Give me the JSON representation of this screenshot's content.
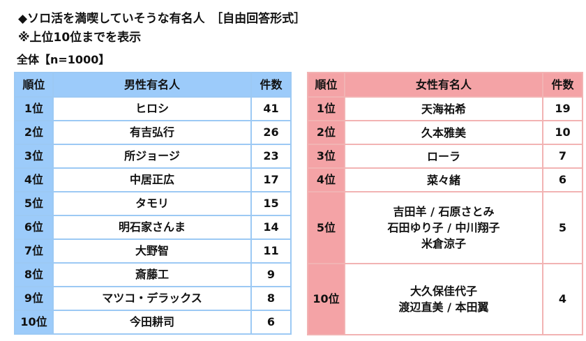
{
  "title": "◆ソロ活を満喫していそうな有名人　［自由回答形式］",
  "note": "※上位10位までを表示",
  "sample": "全体【n=1000】",
  "colors": {
    "male_header": "#9ccbfa",
    "female_header": "#f4a3a6"
  },
  "male_table": {
    "headers": [
      "順位",
      "男性有名人",
      "件数"
    ],
    "rows": [
      {
        "rank": "1位",
        "name": "ヒロシ",
        "count": "41"
      },
      {
        "rank": "2位",
        "name": "有吉弘行",
        "count": "26"
      },
      {
        "rank": "3位",
        "name": "所ジョージ",
        "count": "23"
      },
      {
        "rank": "4位",
        "name": "中居正広",
        "count": "17"
      },
      {
        "rank": "5位",
        "name": "タモリ",
        "count": "15"
      },
      {
        "rank": "6位",
        "name": "明石家さんま",
        "count": "14"
      },
      {
        "rank": "7位",
        "name": "大野智",
        "count": "11"
      },
      {
        "rank": "8位",
        "name": "斎藤工",
        "count": "9"
      },
      {
        "rank": "9位",
        "name": "マツコ・デラックス",
        "count": "8"
      },
      {
        "rank": "10位",
        "name": "今田耕司",
        "count": "6"
      }
    ]
  },
  "female_table": {
    "headers": [
      "順位",
      "女性有名人",
      "件数"
    ],
    "rows": [
      {
        "rank": "1位",
        "names": [
          "天海祐希"
        ],
        "count": "19"
      },
      {
        "rank": "2位",
        "names": [
          "久本雅美"
        ],
        "count": "10"
      },
      {
        "rank": "3位",
        "names": [
          "ローラ"
        ],
        "count": "7"
      },
      {
        "rank": "4位",
        "names": [
          "菜々緒"
        ],
        "count": "6"
      },
      {
        "rank": "5位",
        "names": [
          "吉田羊 / 石原さとみ",
          "石田ゆり子 / 中川翔子",
          "米倉涼子"
        ],
        "count": "5"
      },
      {
        "rank": "10位",
        "names": [
          "大久保佳代子",
          "渡辺直美 / 本田翼"
        ],
        "count": "4"
      }
    ]
  }
}
